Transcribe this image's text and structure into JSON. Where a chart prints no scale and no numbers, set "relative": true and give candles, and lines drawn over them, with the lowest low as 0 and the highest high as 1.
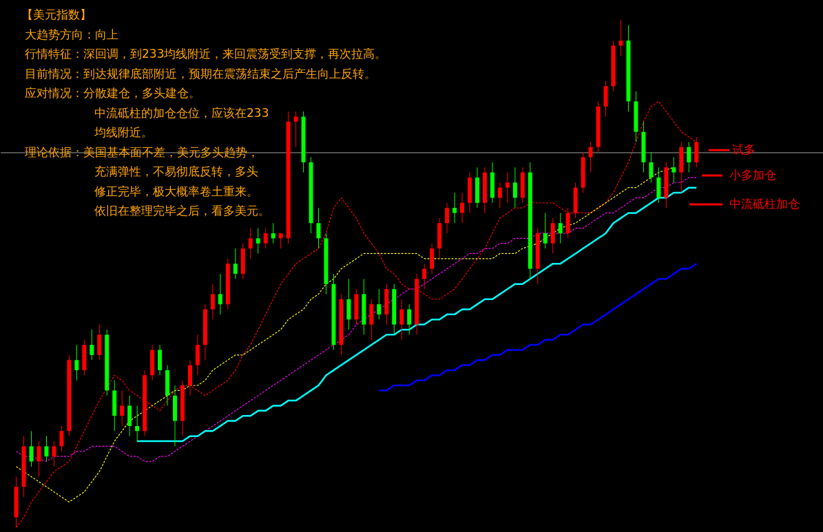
{
  "chart_data": {
    "type": "candlestick",
    "relative": true,
    "title": "【美元指数】",
    "annotations": [
      "大趋势方向：向上",
      "行情特征：深回调，到233均线附近，来回震荡受到支撑，再次拉高。",
      "目前情况：到达规律底部附近，预期在震荡结束之后产生向上反转。",
      "应对情况：分散建仓，多头建仓。",
      "中流砥柱的加仓仓位，应该在233",
      "均线附近。",
      "理论依据：美国基本面不差，美元多头趋势，",
      "充满弹性，不易彻底反转，多头",
      "修正完毕，极大概率卷土重来。",
      "依旧在整理完毕之后，看多美元。",
      {
        "text": "试多",
        "y": 0.744
      },
      "小多加仓",
      "中流砥柱加仓"
    ],
    "tick_labels": false,
    "ref_lines": [
      {
        "axis": "y",
        "value": 0.739,
        "color": "#808080"
      }
    ],
    "categories": [
      null,
      null,
      null,
      null,
      null,
      null,
      null,
      null,
      null,
      null,
      null,
      null,
      null,
      null,
      null,
      null,
      null,
      null,
      null,
      null,
      null,
      null,
      null,
      null,
      null,
      null,
      null,
      null,
      null,
      null,
      null,
      null,
      null,
      null,
      null,
      null,
      null,
      null,
      null,
      null,
      null,
      null,
      null,
      null,
      null,
      null,
      null,
      null,
      null,
      null,
      null,
      null,
      null,
      null,
      null,
      null,
      null,
      null,
      null,
      null,
      null,
      null,
      null,
      null,
      null,
      null,
      null,
      null,
      null,
      null,
      null,
      null,
      null,
      null,
      null,
      null,
      null,
      null,
      null,
      null,
      null,
      null,
      null,
      null,
      null,
      null,
      null,
      null,
      null,
      null,
      null
    ],
    "ohlc": [
      [
        0.02,
        0.1,
        0.0,
        0.08
      ],
      [
        0.08,
        0.18,
        0.06,
        0.16
      ],
      [
        0.16,
        0.19,
        0.12,
        0.13
      ],
      [
        0.13,
        0.17,
        0.1,
        0.16
      ],
      [
        0.16,
        0.18,
        0.13,
        0.14
      ],
      [
        0.14,
        0.17,
        0.12,
        0.16
      ],
      [
        0.16,
        0.2,
        0.15,
        0.19
      ],
      [
        0.19,
        0.34,
        0.18,
        0.33
      ],
      [
        0.33,
        0.36,
        0.29,
        0.31
      ],
      [
        0.31,
        0.37,
        0.3,
        0.36
      ],
      [
        0.36,
        0.39,
        0.33,
        0.34
      ],
      [
        0.34,
        0.4,
        0.33,
        0.38
      ],
      [
        0.38,
        0.39,
        0.26,
        0.27
      ],
      [
        0.27,
        0.29,
        0.19,
        0.22
      ],
      [
        0.22,
        0.27,
        0.2,
        0.24
      ],
      [
        0.24,
        0.26,
        0.18,
        0.2
      ],
      [
        0.2,
        0.24,
        0.17,
        0.19
      ],
      [
        0.19,
        0.31,
        0.18,
        0.3
      ],
      [
        0.3,
        0.36,
        0.29,
        0.35
      ],
      [
        0.35,
        0.36,
        0.3,
        0.31
      ],
      [
        0.31,
        0.32,
        0.24,
        0.26
      ],
      [
        0.26,
        0.28,
        0.16,
        0.21
      ],
      [
        0.21,
        0.29,
        0.18,
        0.28
      ],
      [
        0.28,
        0.33,
        0.26,
        0.32
      ],
      [
        0.32,
        0.38,
        0.3,
        0.36
      ],
      [
        0.36,
        0.44,
        0.33,
        0.43
      ],
      [
        0.43,
        0.48,
        0.41,
        0.46
      ],
      [
        0.46,
        0.5,
        0.42,
        0.44
      ],
      [
        0.44,
        0.53,
        0.43,
        0.52
      ],
      [
        0.52,
        0.55,
        0.49,
        0.5
      ],
      [
        0.5,
        0.56,
        0.49,
        0.55
      ],
      [
        0.55,
        0.59,
        0.53,
        0.57
      ],
      [
        0.57,
        0.59,
        0.54,
        0.56
      ],
      [
        0.56,
        0.59,
        0.55,
        0.58
      ],
      [
        0.58,
        0.6,
        0.56,
        0.57
      ],
      [
        0.57,
        0.58,
        0.55,
        0.58
      ],
      [
        0.57,
        0.82,
        0.56,
        0.8
      ],
      [
        0.8,
        0.82,
        0.75,
        0.81
      ],
      [
        0.81,
        0.82,
        0.7,
        0.72
      ],
      [
        0.72,
        0.73,
        0.58,
        0.6
      ],
      [
        0.6,
        0.63,
        0.55,
        0.57
      ],
      [
        0.57,
        0.58,
        0.46,
        0.48
      ],
      [
        0.48,
        0.5,
        0.35,
        0.36
      ],
      [
        0.36,
        0.46,
        0.34,
        0.45
      ],
      [
        0.45,
        0.49,
        0.39,
        0.41
      ],
      [
        0.41,
        0.47,
        0.4,
        0.46
      ],
      [
        0.46,
        0.49,
        0.38,
        0.4
      ],
      [
        0.4,
        0.45,
        0.37,
        0.44
      ],
      [
        0.44,
        0.47,
        0.41,
        0.42
      ],
      [
        0.42,
        0.48,
        0.4,
        0.47
      ],
      [
        0.47,
        0.48,
        0.38,
        0.4
      ],
      [
        0.4,
        0.45,
        0.37,
        0.43
      ],
      [
        0.43,
        0.44,
        0.38,
        0.4
      ],
      [
        0.4,
        0.5,
        0.38,
        0.49
      ],
      [
        0.49,
        0.52,
        0.47,
        0.51
      ],
      [
        0.51,
        0.56,
        0.5,
        0.55
      ],
      [
        0.55,
        0.61,
        0.53,
        0.6
      ],
      [
        0.6,
        0.64,
        0.58,
        0.63
      ],
      [
        0.63,
        0.66,
        0.6,
        0.62
      ],
      [
        0.62,
        0.66,
        0.6,
        0.64
      ],
      [
        0.64,
        0.7,
        0.62,
        0.69
      ],
      [
        0.69,
        0.71,
        0.63,
        0.64
      ],
      [
        0.64,
        0.71,
        0.62,
        0.7
      ],
      [
        0.7,
        0.72,
        0.64,
        0.65
      ],
      [
        0.65,
        0.68,
        0.63,
        0.67
      ],
      [
        0.67,
        0.7,
        0.64,
        0.68
      ],
      [
        0.68,
        0.71,
        0.63,
        0.65
      ],
      [
        0.65,
        0.71,
        0.64,
        0.7
      ],
      [
        0.7,
        0.72,
        0.49,
        0.51
      ],
      [
        0.51,
        0.59,
        0.48,
        0.58
      ],
      [
        0.58,
        0.62,
        0.55,
        0.56
      ],
      [
        0.56,
        0.61,
        0.54,
        0.6
      ],
      [
        0.6,
        0.62,
        0.56,
        0.58
      ],
      [
        0.58,
        0.63,
        0.57,
        0.62
      ],
      [
        0.62,
        0.68,
        0.61,
        0.67
      ],
      [
        0.67,
        0.74,
        0.66,
        0.73
      ],
      [
        0.73,
        0.76,
        0.7,
        0.75
      ],
      [
        0.75,
        0.84,
        0.74,
        0.83
      ],
      [
        0.83,
        0.88,
        0.81,
        0.87
      ],
      [
        0.87,
        0.96,
        0.86,
        0.95
      ],
      [
        0.95,
        1.0,
        0.93,
        0.96
      ],
      [
        0.96,
        0.99,
        0.82,
        0.84
      ],
      [
        0.84,
        0.86,
        0.76,
        0.78
      ],
      [
        0.78,
        0.8,
        0.7,
        0.72
      ],
      [
        0.72,
        0.74,
        0.68,
        0.69
      ],
      [
        0.69,
        0.71,
        0.64,
        0.65
      ],
      [
        0.65,
        0.72,
        0.63,
        0.71
      ],
      [
        0.71,
        0.73,
        0.68,
        0.7
      ],
      [
        0.7,
        0.76,
        0.66,
        0.75
      ],
      [
        0.75,
        0.76,
        0.7,
        0.72
      ],
      [
        0.72,
        0.77,
        0.71,
        0.76
      ]
    ],
    "series": [
      {
        "type": "line",
        "color": "#ff0000",
        "line_style": "dashed",
        "values": [
          0.0,
          0.02,
          0.05,
          0.07,
          0.09,
          0.11,
          0.12,
          0.13,
          0.16,
          0.19,
          0.22,
          0.25,
          null,
          0.3,
          0.29,
          0.27,
          0.26,
          0.25,
          0.24,
          0.23,
          0.25,
          0.27,
          0.28,
          0.28,
          0.27,
          0.26,
          0.27,
          0.28,
          0.29,
          0.31,
          0.34,
          0.36,
          0.39,
          0.42,
          0.45,
          0.48,
          0.5,
          0.52,
          0.53,
          0.54,
          0.55,
          0.58,
          0.63,
          0.65,
          0.63,
          0.61,
          0.58,
          0.56,
          0.54,
          0.51,
          0.5,
          0.48,
          0.47,
          0.47,
          0.46,
          0.45,
          0.45,
          0.46,
          0.47,
          0.49,
          0.51,
          0.53,
          0.55,
          0.58,
          0.61,
          0.62,
          0.63,
          0.63,
          0.64,
          0.64,
          0.64,
          0.64,
          0.63,
          0.62,
          0.62,
          0.62,
          0.62,
          0.63,
          0.64,
          0.66,
          0.69,
          0.72,
          0.76,
          0.8,
          0.83,
          0.84,
          0.82,
          0.8,
          0.78,
          0.77,
          0.76
        ]
      },
      {
        "type": "line",
        "color": "#ffff00",
        "line_style": "dashed",
        "values": [
          0.12,
          0.11,
          0.1,
          0.09,
          0.08,
          0.07,
          0.06,
          0.05,
          0.06,
          0.07,
          0.09,
          0.11,
          0.14,
          0.17,
          0.19,
          0.21,
          0.22,
          0.23,
          0.24,
          0.25,
          0.26,
          0.27,
          0.27,
          0.28,
          0.28,
          0.29,
          0.31,
          0.32,
          0.33,
          0.34,
          0.34,
          0.35,
          0.36,
          0.37,
          0.38,
          0.39,
          0.41,
          0.42,
          0.43,
          0.45,
          0.46,
          0.48,
          0.49,
          0.51,
          0.52,
          0.53,
          0.54,
          0.54,
          0.54,
          0.54,
          0.54,
          0.54,
          0.54,
          0.54,
          0.53,
          0.53,
          0.53,
          0.53,
          0.53,
          0.53,
          0.53,
          0.53,
          0.53,
          0.53,
          0.54,
          0.54,
          0.54,
          0.55,
          null,
          0.56,
          0.57,
          0.58,
          0.59,
          null,
          0.6,
          0.61,
          0.62,
          0.63,
          0.64,
          0.65,
          0.66,
          0.67,
          0.67,
          0.68,
          0.69,
          0.7,
          null,
          0.71,
          null,
          null,
          null
        ]
      },
      {
        "type": "line",
        "color": "#ff00ff",
        "line_style": "dashed",
        "values": [
          0.15,
          0.14,
          0.14,
          null,
          0.13,
          0.14,
          0.14,
          0.14,
          0.15,
          0.15,
          0.16,
          0.16,
          0.16,
          0.16,
          0.15,
          0.14,
          0.14,
          0.13,
          0.13,
          0.14,
          0.14,
          0.15,
          0.16,
          0.17,
          0.18,
          0.19,
          0.2,
          0.21,
          0.22,
          0.23,
          0.24,
          0.25,
          0.26,
          0.27,
          0.28,
          0.29,
          0.3,
          0.31,
          0.32,
          0.33,
          0.34,
          0.35,
          0.36,
          0.37,
          0.38,
          0.4,
          0.41,
          0.42,
          0.43,
          0.44,
          0.45,
          0.46,
          0.47,
          0.47,
          0.48,
          0.49,
          0.5,
          0.51,
          0.52,
          0.53,
          0.54,
          0.54,
          0.55,
          0.55,
          0.56,
          0.56,
          0.57,
          0.57,
          0.57,
          0.58,
          0.58,
          0.58,
          0.58,
          0.58,
          0.59,
          0.59,
          0.6,
          0.61,
          0.62,
          0.62,
          0.63,
          0.64,
          0.65,
          0.65,
          0.66,
          0.67,
          0.67,
          0.68,
          0.68,
          0.69,
          0.69
        ]
      },
      {
        "type": "line",
        "color": "#00ffff",
        "line_style": "solid",
        "values": [
          null,
          null,
          null,
          null,
          null,
          null,
          null,
          null,
          null,
          null,
          null,
          null,
          null,
          null,
          null,
          null,
          0.17,
          0.17,
          0.17,
          0.17,
          0.17,
          0.17,
          0.17,
          0.18,
          0.18,
          0.19,
          0.19,
          0.2,
          0.21,
          0.21,
          0.22,
          0.22,
          0.23,
          0.23,
          0.24,
          0.24,
          0.25,
          0.25,
          0.26,
          0.27,
          0.28,
          0.3,
          0.31,
          0.32,
          0.33,
          0.34,
          0.35,
          0.36,
          0.37,
          0.38,
          0.38,
          0.39,
          0.39,
          0.4,
          0.4,
          0.41,
          0.41,
          0.42,
          0.42,
          0.43,
          0.43,
          0.44,
          0.45,
          0.45,
          0.46,
          0.47,
          0.48,
          0.48,
          0.49,
          0.5,
          0.51,
          0.52,
          0.52,
          0.53,
          0.54,
          0.55,
          0.56,
          0.57,
          0.58,
          0.6,
          0.61,
          0.62,
          0.62,
          0.63,
          0.64,
          0.65,
          0.65,
          0.66,
          0.66,
          0.67,
          0.67
        ]
      },
      {
        "type": "line",
        "color": "#0000ff",
        "line_style": "solid",
        "values": [
          null,
          null,
          null,
          null,
          null,
          null,
          null,
          null,
          null,
          null,
          null,
          null,
          null,
          null,
          null,
          null,
          null,
          null,
          null,
          null,
          null,
          null,
          null,
          null,
          null,
          null,
          null,
          null,
          null,
          null,
          null,
          null,
          null,
          null,
          null,
          null,
          null,
          null,
          null,
          null,
          null,
          null,
          null,
          null,
          null,
          null,
          null,
          null,
          0.27,
          0.27,
          0.28,
          0.28,
          0.28,
          0.29,
          0.29,
          0.3,
          0.3,
          0.31,
          0.31,
          0.32,
          0.32,
          0.33,
          0.33,
          0.34,
          0.34,
          0.35,
          0.35,
          0.35,
          0.36,
          0.36,
          0.37,
          0.37,
          0.38,
          0.38,
          0.39,
          0.4,
          0.4,
          0.41,
          0.42,
          0.43,
          0.44,
          0.45,
          0.46,
          0.47,
          0.48,
          0.49,
          0.49,
          0.5,
          0.51,
          0.51,
          0.52
        ]
      }
    ]
  }
}
